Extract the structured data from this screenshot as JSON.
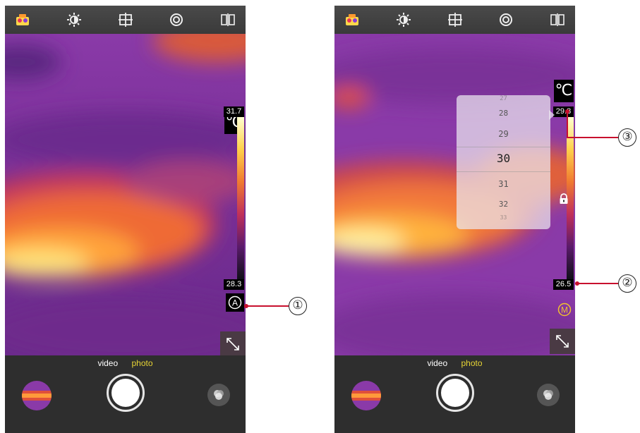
{
  "screens": [
    {
      "toolbar": {
        "icons": [
          "camera-palette-icon",
          "brightness-icon",
          "crosshair-icon",
          "aperture-icon",
          "compare-icon"
        ]
      },
      "unit": "℃",
      "temp_high": "31.7",
      "temp_low": "28.3",
      "mode_label": "A",
      "tabs": {
        "video": "video",
        "photo": "photo"
      },
      "callout": "①"
    },
    {
      "toolbar": {
        "icons": [
          "camera-palette-icon",
          "brightness-icon",
          "crosshair-icon",
          "aperture-icon",
          "compare-icon"
        ]
      },
      "unit": "℃",
      "temp_high": "29.8",
      "temp_low": "26.5",
      "mode_label": "M",
      "tabs": {
        "video": "video",
        "photo": "photo"
      },
      "picker": {
        "values": [
          "27",
          "28",
          "29",
          "30",
          "31",
          "32",
          "33"
        ],
        "selected": "30"
      },
      "callouts": {
        "low": "②",
        "high": "③"
      }
    }
  ],
  "colors": {
    "accent": "#e6d335",
    "callout": "#c8102e"
  }
}
